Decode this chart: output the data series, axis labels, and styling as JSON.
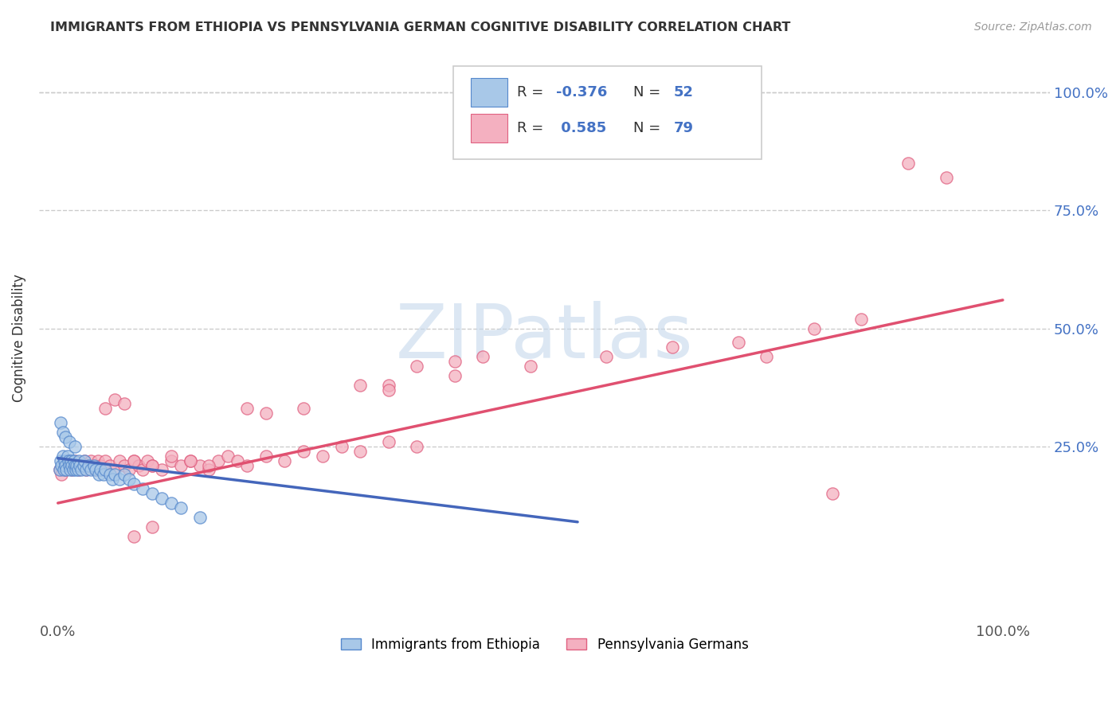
{
  "title": "IMMIGRANTS FROM ETHIOPIA VS PENNSYLVANIA GERMAN COGNITIVE DISABILITY CORRELATION CHART",
  "source": "Source: ZipAtlas.com",
  "ylabel": "Cognitive Disability",
  "color_blue_fill": "#a8c8e8",
  "color_blue_edge": "#5588cc",
  "color_pink_fill": "#f4b0c0",
  "color_pink_edge": "#e06080",
  "color_trendline_blue": "#4466bb",
  "color_trendline_pink": "#e05070",
  "color_grid": "#cccccc",
  "color_title": "#333333",
  "color_source": "#999999",
  "color_ytick": "#4472C4",
  "color_xtick": "#555555",
  "color_watermark": "#c5d8ec",
  "legend_label_blue": "Immigrants from Ethiopia",
  "legend_label_pink": "Pennsylvania Germans",
  "xlim": [
    -0.02,
    1.05
  ],
  "ylim": [
    -0.12,
    1.08
  ],
  "ytick_vals": [
    0.25,
    0.5,
    0.75,
    1.0
  ],
  "ytick_labels": [
    "25.0%",
    "50.0%",
    "75.0%",
    "100.0%"
  ],
  "xtick_vals": [
    0.0,
    1.0
  ],
  "xtick_labels": [
    "0.0%",
    "100.0%"
  ],
  "blue_x": [
    0.002,
    0.003,
    0.004,
    0.005,
    0.006,
    0.007,
    0.008,
    0.009,
    0.01,
    0.011,
    0.012,
    0.013,
    0.014,
    0.015,
    0.016,
    0.017,
    0.018,
    0.019,
    0.02,
    0.021,
    0.022,
    0.023,
    0.025,
    0.027,
    0.028,
    0.03,
    0.032,
    0.035,
    0.038,
    0.04,
    0.043,
    0.045,
    0.048,
    0.05,
    0.055,
    0.058,
    0.06,
    0.065,
    0.07,
    0.075,
    0.08,
    0.09,
    0.1,
    0.11,
    0.12,
    0.13,
    0.15,
    0.003,
    0.005,
    0.008,
    0.012,
    0.018
  ],
  "blue_y": [
    0.2,
    0.22,
    0.21,
    0.23,
    0.2,
    0.22,
    0.21,
    0.2,
    0.23,
    0.22,
    0.21,
    0.2,
    0.22,
    0.21,
    0.2,
    0.22,
    0.21,
    0.2,
    0.21,
    0.2,
    0.22,
    0.21,
    0.2,
    0.21,
    0.22,
    0.2,
    0.21,
    0.2,
    0.21,
    0.2,
    0.19,
    0.2,
    0.19,
    0.2,
    0.19,
    0.18,
    0.19,
    0.18,
    0.19,
    0.18,
    0.17,
    0.16,
    0.15,
    0.14,
    0.13,
    0.12,
    0.1,
    0.3,
    0.28,
    0.27,
    0.26,
    0.25
  ],
  "pink_x": [
    0.002,
    0.004,
    0.006,
    0.008,
    0.01,
    0.012,
    0.015,
    0.018,
    0.02,
    0.022,
    0.025,
    0.028,
    0.03,
    0.032,
    0.035,
    0.038,
    0.04,
    0.042,
    0.045,
    0.048,
    0.05,
    0.055,
    0.06,
    0.065,
    0.07,
    0.075,
    0.08,
    0.085,
    0.09,
    0.095,
    0.1,
    0.11,
    0.12,
    0.13,
    0.14,
    0.15,
    0.16,
    0.17,
    0.18,
    0.19,
    0.2,
    0.22,
    0.24,
    0.26,
    0.28,
    0.3,
    0.32,
    0.35,
    0.38,
    0.05,
    0.06,
    0.07,
    0.2,
    0.22,
    0.35,
    0.42,
    0.5,
    0.58,
    0.65,
    0.72,
    0.8,
    0.85,
    0.38,
    0.42,
    0.45,
    0.32,
    0.35,
    0.26,
    0.12,
    0.14,
    0.16,
    0.08,
    0.1,
    0.75,
    0.82,
    0.9,
    0.94,
    0.1,
    0.08
  ],
  "pink_y": [
    0.2,
    0.19,
    0.21,
    0.2,
    0.22,
    0.21,
    0.2,
    0.22,
    0.21,
    0.2,
    0.21,
    0.22,
    0.2,
    0.21,
    0.22,
    0.21,
    0.2,
    0.22,
    0.21,
    0.2,
    0.22,
    0.21,
    0.2,
    0.22,
    0.21,
    0.2,
    0.22,
    0.21,
    0.2,
    0.22,
    0.21,
    0.2,
    0.22,
    0.21,
    0.22,
    0.21,
    0.2,
    0.22,
    0.23,
    0.22,
    0.21,
    0.23,
    0.22,
    0.24,
    0.23,
    0.25,
    0.24,
    0.26,
    0.25,
    0.33,
    0.35,
    0.34,
    0.33,
    0.32,
    0.38,
    0.4,
    0.42,
    0.44,
    0.46,
    0.47,
    0.5,
    0.52,
    0.42,
    0.43,
    0.44,
    0.38,
    0.37,
    0.33,
    0.23,
    0.22,
    0.21,
    0.22,
    0.21,
    0.44,
    0.15,
    0.85,
    0.82,
    0.08,
    0.06
  ],
  "blue_trend_x": [
    0.0,
    0.55
  ],
  "blue_trend_y_start": 0.225,
  "blue_trend_y_end": 0.09,
  "pink_trend_x": [
    0.0,
    1.0
  ],
  "pink_trend_y_start": 0.13,
  "pink_trend_y_end": 0.56
}
